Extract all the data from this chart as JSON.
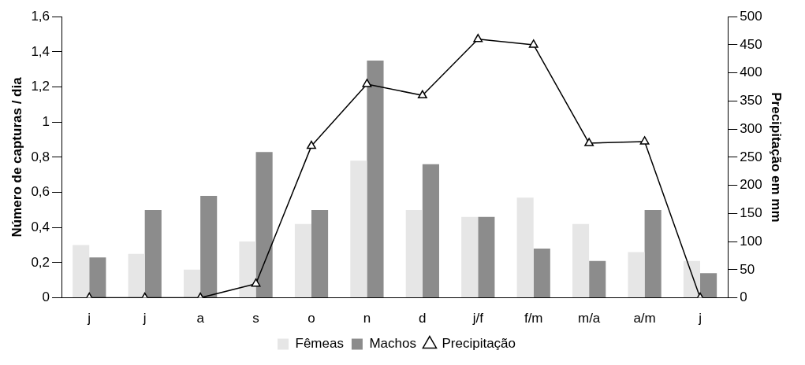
{
  "chart_data": {
    "type": "bar",
    "categories": [
      "j",
      "j",
      "a",
      "s",
      "o",
      "n",
      "d",
      "j/f",
      "f/m",
      "m/a",
      "a/m",
      "j"
    ],
    "series": [
      {
        "name": "Fêmeas",
        "color": "#e6e6e6",
        "values": [
          0.3,
          0.25,
          0.16,
          0.32,
          0.42,
          0.78,
          0.5,
          0.46,
          0.57,
          0.42,
          0.26,
          0.21
        ]
      },
      {
        "name": "Machos",
        "color": "#8c8c8c",
        "values": [
          0.23,
          0.5,
          0.58,
          0.83,
          0.5,
          1.35,
          0.76,
          0.46,
          0.28,
          0.21,
          0.5,
          0.14
        ]
      },
      {
        "name": "Precipitação",
        "type": "line",
        "axis": "y2",
        "color": "#000000",
        "marker": "triangle",
        "values": [
          0,
          0,
          0,
          25,
          270,
          380,
          360,
          460,
          450,
          275,
          278,
          0
        ]
      }
    ],
    "ylabel": "Número de capturas / dia",
    "y2label": "Precipitação em mm",
    "ylim": [
      0,
      1.6
    ],
    "yticks": [
      {
        "value": 0,
        "label": "0"
      },
      {
        "value": 0.2,
        "label": "0,2"
      },
      {
        "value": 0.4,
        "label": "0,4"
      },
      {
        "value": 0.6,
        "label": "0,6"
      },
      {
        "value": 0.8,
        "label": "0,8"
      },
      {
        "value": 1,
        "label": "1"
      },
      {
        "value": 1.2,
        "label": "1,2"
      },
      {
        "value": 1.4,
        "label": "1,4"
      },
      {
        "value": 1.6,
        "label": "1,6"
      }
    ],
    "y2lim": [
      0,
      500
    ],
    "y2ticks": [
      0,
      50,
      100,
      150,
      200,
      250,
      300,
      350,
      400,
      450,
      500
    ],
    "grid": false,
    "legend": "bottom"
  }
}
